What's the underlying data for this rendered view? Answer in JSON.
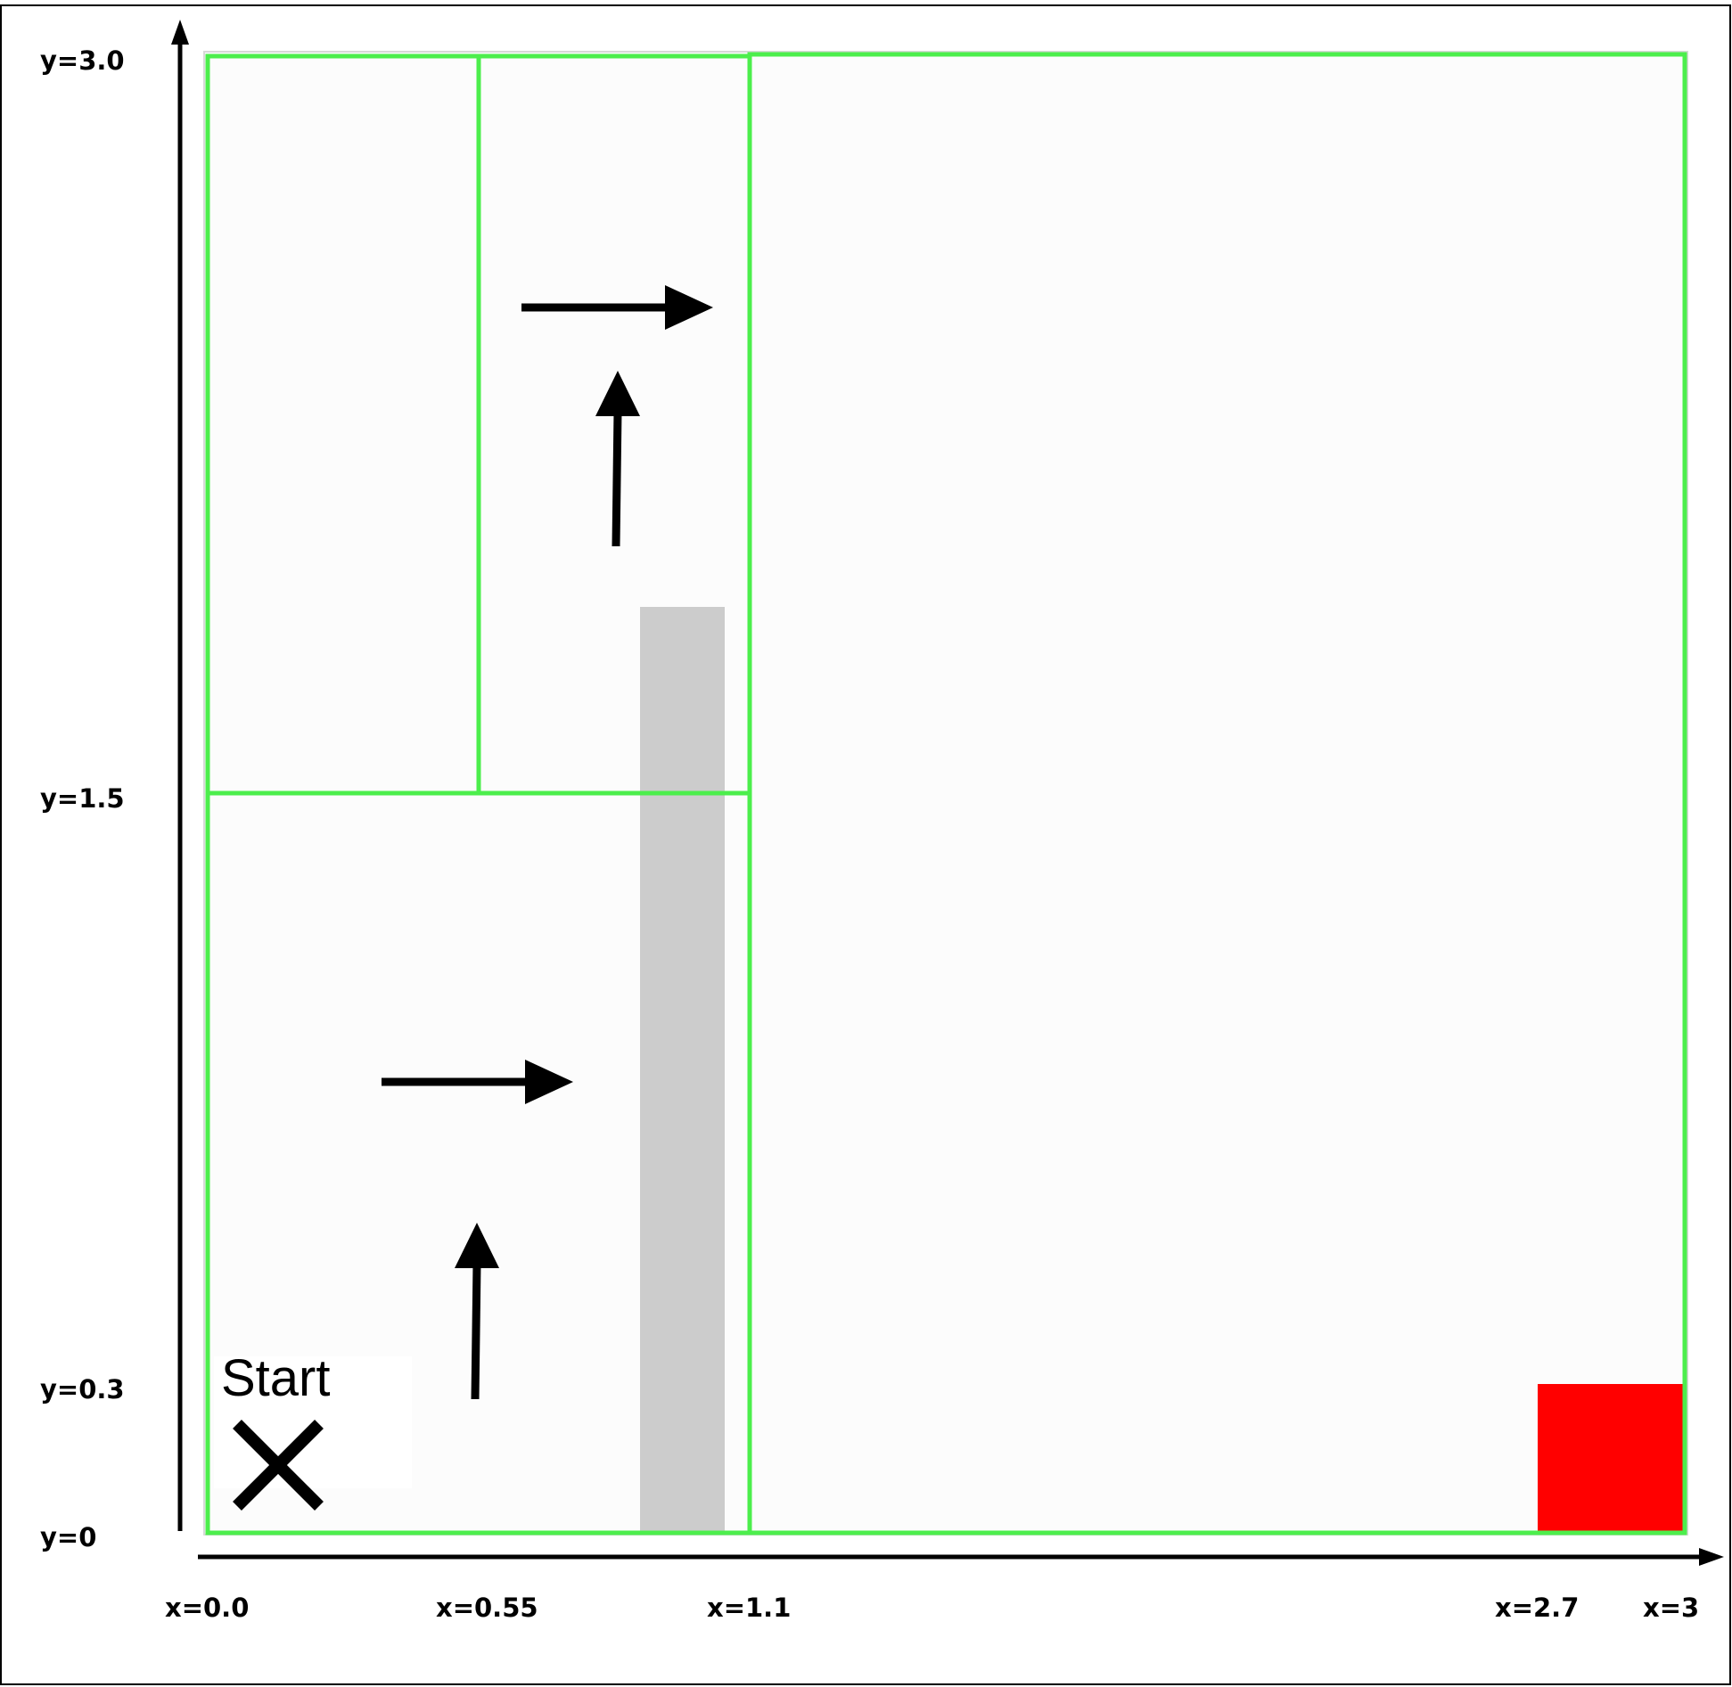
{
  "diagram": {
    "x_labels": [
      "x=0.0",
      "x=0.55",
      "x=1.1",
      "x=2.7",
      "x=3"
    ],
    "y_labels": [
      "y=3.0",
      "y=1.5",
      "y=0.3",
      "y=0"
    ],
    "start_label": "Start",
    "start_marker_icon": "x-cross-icon",
    "colors": {
      "region_border": "#4cee4c",
      "region_fill": "#fcfcfc",
      "obstacle": "#cccccc",
      "goal": "#ff0000",
      "arrows": "#000000",
      "axes": "#000000"
    },
    "x_domain": [
      0,
      3
    ],
    "y_domain": [
      0,
      3
    ],
    "regions": [
      {
        "x0": 0,
        "x1": 0.55,
        "y0": 1.5,
        "y1": 3.0
      },
      {
        "x0": 0.55,
        "x1": 1.1,
        "y0": 1.5,
        "y1": 3.0
      },
      {
        "x0": 0,
        "x1": 1.1,
        "y0": 0,
        "y1": 1.5
      },
      {
        "x0": 1.1,
        "x1": 3.0,
        "y0": 0,
        "y1": 3.0
      }
    ],
    "goal": {
      "x0": 2.7,
      "x1": 3.0,
      "y0": 0,
      "y1": 0.3
    },
    "arrows": [
      {
        "direction": "up"
      },
      {
        "direction": "right"
      },
      {
        "direction": "up"
      },
      {
        "direction": "right"
      }
    ]
  }
}
